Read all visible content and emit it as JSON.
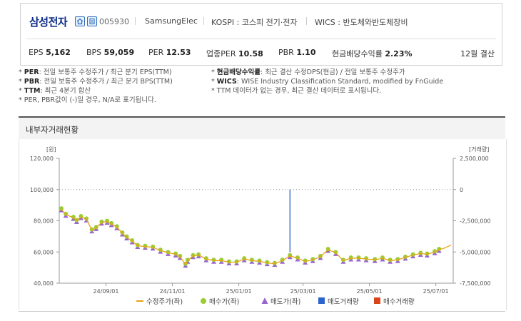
{
  "company": {
    "name": "삼성전자",
    "ticker": "005930",
    "english_name": "SamsungElec",
    "market": "KOSPI : 코스피 전기·전자",
    "wics": "WICS : 반도체와반도체장비",
    "icons": [
      "home-icon",
      "report-icon"
    ]
  },
  "metrics": [
    {
      "label": "EPS",
      "value": "5,162"
    },
    {
      "label": "BPS",
      "value": "59,059"
    },
    {
      "label": "PER",
      "value": "12.53"
    },
    {
      "label": "업종PER",
      "value": "10.58"
    },
    {
      "label": "PBR",
      "value": "1.10"
    },
    {
      "label": "현금배당수익률",
      "value": "2.23%"
    }
  ],
  "settlement": "12월 결산",
  "notes": [
    {
      "key": "PER",
      "text": ": 전일 보통주 수정주가 / 최근 분기 EPS(TTM)"
    },
    {
      "key": "PBR",
      "text": ": 전일 보통주 수정주가 / 최근 분기 BPS(TTM)"
    },
    {
      "key": "TTM",
      "text": ": 최근 4분기 합산"
    },
    {
      "key": "",
      "text": "PER, PBR값이 (-)일 경우, N/A로 표기됩니다."
    },
    {
      "key": "현금배당수익률",
      "text": ": 최근 결산 수정DPS(현금) / 전일 보통주 수정주가"
    },
    {
      "key": "WICS",
      "text": ": WISE Industry Classification Standard, modified by FnGuide"
    },
    {
      "key": "",
      "text": "TTM 데이터가 없는 경우, 최근 결산 데이터로 표시됩니다."
    }
  ],
  "section_title": "내부자거래현황",
  "chart_data": {
    "type": "line",
    "left_axis_label": "[원]",
    "right_axis_label": "[거래량]",
    "left_ticks": [
      "120,000",
      "100,000",
      "80,000",
      "60,000",
      "40,000"
    ],
    "left_ylim": [
      40000,
      120000
    ],
    "right_ticks": [
      "2,500,000",
      "0",
      "-2,500,000",
      "-5,000,000",
      "-7,500,000"
    ],
    "right_ylim": [
      -7500000,
      2500000
    ],
    "x_ticks": [
      "24/09/01",
      "24/11/01",
      "25/01/01",
      "25/03/01",
      "25/05/01",
      "25/07/01"
    ],
    "x_range": [
      "2024-07-22",
      "2025-07-15"
    ],
    "grid": false,
    "legend_position": "bottom",
    "legend": [
      {
        "name": "수정주가(좌)",
        "marker": "line",
        "color": "#e8a317"
      },
      {
        "name": "매수가(좌)",
        "marker": "circle",
        "color": "#9acd32"
      },
      {
        "name": "매도가(좌)",
        "marker": "triangle",
        "color": "#9966cc"
      },
      {
        "name": "매도거래량",
        "marker": "square",
        "color": "#2a63c9"
      },
      {
        "name": "매수거래량",
        "marker": "square",
        "color": "#d9451b"
      }
    ],
    "price_series": [
      {
        "date": "2024-07-22",
        "value": 87500
      },
      {
        "date": "2024-07-26",
        "value": 84000
      },
      {
        "date": "2024-08-02",
        "value": 82000
      },
      {
        "date": "2024-08-05",
        "value": 80000
      },
      {
        "date": "2024-08-09",
        "value": 82500
      },
      {
        "date": "2024-08-14",
        "value": 81000
      },
      {
        "date": "2024-08-19",
        "value": 74000
      },
      {
        "date": "2024-08-23",
        "value": 75500
      },
      {
        "date": "2024-08-28",
        "value": 79000
      },
      {
        "date": "2024-09-02",
        "value": 79500
      },
      {
        "date": "2024-09-06",
        "value": 78000
      },
      {
        "date": "2024-09-11",
        "value": 76000
      },
      {
        "date": "2024-09-16",
        "value": 72000
      },
      {
        "date": "2024-09-20",
        "value": 69500
      },
      {
        "date": "2024-09-25",
        "value": 67000
      },
      {
        "date": "2024-09-30",
        "value": 64000
      },
      {
        "date": "2024-10-07",
        "value": 63500
      },
      {
        "date": "2024-10-14",
        "value": 63000
      },
      {
        "date": "2024-10-21",
        "value": 61000
      },
      {
        "date": "2024-10-28",
        "value": 59500
      },
      {
        "date": "2024-11-04",
        "value": 58500
      },
      {
        "date": "2024-11-08",
        "value": 57000
      },
      {
        "date": "2024-11-13",
        "value": 52000
      },
      {
        "date": "2024-11-15",
        "value": 54500
      },
      {
        "date": "2024-11-20",
        "value": 57500
      },
      {
        "date": "2024-11-25",
        "value": 58000
      },
      {
        "date": "2024-12-02",
        "value": 55500
      },
      {
        "date": "2024-12-09",
        "value": 54500
      },
      {
        "date": "2024-12-16",
        "value": 54500
      },
      {
        "date": "2024-12-23",
        "value": 53500
      },
      {
        "date": "2024-12-30",
        "value": 53500
      },
      {
        "date": "2025-01-06",
        "value": 55500
      },
      {
        "date": "2025-01-13",
        "value": 54500
      },
      {
        "date": "2025-01-20",
        "value": 54000
      },
      {
        "date": "2025-01-27",
        "value": 53000
      },
      {
        "date": "2025-02-03",
        "value": 52500
      },
      {
        "date": "2025-02-10",
        "value": 54500
      },
      {
        "date": "2025-02-17",
        "value": 57500
      },
      {
        "date": "2025-02-24",
        "value": 56000
      },
      {
        "date": "2025-03-03",
        "value": 54000
      },
      {
        "date": "2025-03-10",
        "value": 55000
      },
      {
        "date": "2025-03-17",
        "value": 57000
      },
      {
        "date": "2025-03-24",
        "value": 61500
      },
      {
        "date": "2025-03-31",
        "value": 59500
      },
      {
        "date": "2025-04-07",
        "value": 54500
      },
      {
        "date": "2025-04-14",
        "value": 56000
      },
      {
        "date": "2025-04-21",
        "value": 56000
      },
      {
        "date": "2025-04-28",
        "value": 55500
      },
      {
        "date": "2025-05-06",
        "value": 55000
      },
      {
        "date": "2025-05-13",
        "value": 56000
      },
      {
        "date": "2025-05-20",
        "value": 54500
      },
      {
        "date": "2025-05-27",
        "value": 55000
      },
      {
        "date": "2025-06-03",
        "value": 56500
      },
      {
        "date": "2025-06-10",
        "value": 58000
      },
      {
        "date": "2025-06-17",
        "value": 59000
      },
      {
        "date": "2025-06-23",
        "value": 58500
      },
      {
        "date": "2025-06-30",
        "value": 60000
      },
      {
        "date": "2025-07-04",
        "value": 61500
      },
      {
        "date": "2025-07-09",
        "value": 62500
      },
      {
        "date": "2025-07-15",
        "value": 64500
      }
    ],
    "volume_bars": [
      {
        "date": "2025-02-17",
        "volume": -5000000,
        "side": "매도거래량"
      }
    ]
  }
}
